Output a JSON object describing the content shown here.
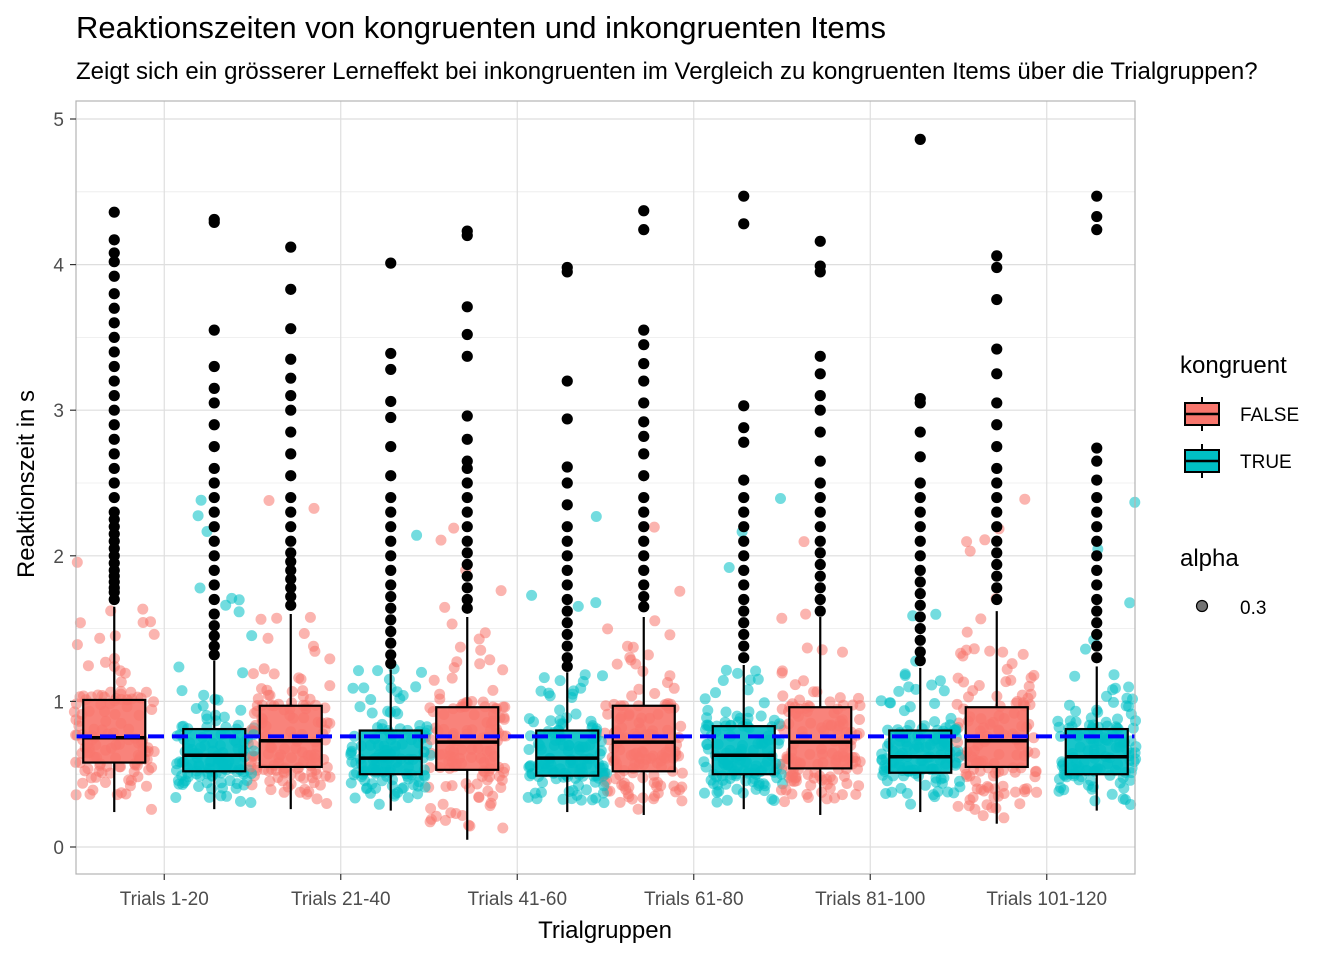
{
  "chart_data": {
    "type": "boxplot-jitter",
    "title": "Reaktionszeiten von kongruenten und inkongruenten Items",
    "subtitle": "Zeigt sich ein grösserer Lerneffekt bei inkongruenten im Vergleich zu kongruenten Items über die Trialgruppen?",
    "xlabel": "Trialgruppen",
    "ylabel": "Reaktionszeit in s",
    "categories": [
      "Trials 1-20",
      "Trials 21-40",
      "Trials 41-60",
      "Trials 61-80",
      "Trials 81-100",
      "Trials 101-120"
    ],
    "y_ticks": [
      "0",
      "1",
      "2",
      "3",
      "4",
      "5"
    ],
    "ylim": [
      -0.18,
      5.1
    ],
    "reference_line": {
      "y": 0.76,
      "color": "#0000ff",
      "style": "dashed"
    },
    "legend": {
      "title": "kongruent",
      "placement": "right",
      "entries": [
        {
          "label": "FALSE",
          "color": "#F8766D"
        },
        {
          "label": "TRUE",
          "color": "#00BFC4"
        }
      ],
      "alpha_title": "alpha",
      "alpha_label": "0.3"
    },
    "series": [
      {
        "name": "FALSE",
        "color": "#F8766D",
        "boxes": [
          {
            "q1": 0.58,
            "median": 0.75,
            "q3": 1.01,
            "lower": 0.24,
            "upper": 1.65,
            "outliers": [
              1.7,
              1.75,
              1.78,
              1.82,
              1.86,
              1.9,
              1.95,
              2.0,
              2.05,
              2.1,
              2.15,
              2.2,
              2.25,
              2.3,
              2.4,
              2.5,
              2.6,
              2.7,
              2.8,
              2.9,
              3.0,
              3.1,
              3.2,
              3.3,
              3.4,
              3.5,
              3.6,
              3.7,
              3.8,
              3.92,
              4.02,
              4.08,
              4.17,
              4.36
            ]
          },
          {
            "q1": 0.55,
            "median": 0.73,
            "q3": 0.97,
            "lower": 0.26,
            "upper": 1.6,
            "outliers": [
              1.66,
              1.72,
              1.78,
              1.84,
              1.9,
              1.96,
              2.02,
              2.1,
              2.2,
              2.3,
              2.4,
              2.55,
              2.7,
              2.85,
              3.0,
              3.1,
              3.22,
              3.35,
              3.56,
              3.83,
              4.12
            ]
          },
          {
            "q1": 0.53,
            "median": 0.72,
            "q3": 0.96,
            "lower": 0.05,
            "upper": 1.58,
            "outliers": [
              1.64,
              1.7,
              1.78,
              1.86,
              1.94,
              2.02,
              2.1,
              2.2,
              2.3,
              2.4,
              2.5,
              2.6,
              2.65,
              2.8,
              2.96,
              3.37,
              3.52,
              3.71,
              4.2,
              4.23
            ]
          },
          {
            "q1": 0.52,
            "median": 0.72,
            "q3": 0.97,
            "lower": 0.22,
            "upper": 1.58,
            "outliers": [
              1.65,
              1.72,
              1.8,
              1.9,
              2.0,
              2.1,
              2.2,
              2.3,
              2.4,
              2.55,
              2.7,
              2.82,
              2.92,
              3.05,
              3.2,
              3.32,
              3.45,
              3.55,
              4.24,
              4.37
            ]
          },
          {
            "q1": 0.54,
            "median": 0.72,
            "q3": 0.96,
            "lower": 0.22,
            "upper": 1.58,
            "outliers": [
              1.62,
              1.7,
              1.78,
              1.86,
              1.94,
              2.02,
              2.1,
              2.2,
              2.3,
              2.4,
              2.5,
              2.65,
              2.85,
              3.0,
              3.1,
              3.25,
              3.37,
              3.95,
              3.99,
              4.16
            ]
          },
          {
            "q1": 0.55,
            "median": 0.73,
            "q3": 0.96,
            "lower": 0.16,
            "upper": 1.62,
            "outliers": [
              1.7,
              1.78,
              1.86,
              1.94,
              2.02,
              2.1,
              2.2,
              2.3,
              2.4,
              2.5,
              2.6,
              2.75,
              2.9,
              3.05,
              3.25,
              3.42,
              3.76,
              3.98,
              4.06
            ]
          }
        ]
      },
      {
        "name": "TRUE",
        "color": "#00BFC4",
        "boxes": [
          {
            "q1": 0.52,
            "median": 0.63,
            "q3": 0.81,
            "lower": 0.26,
            "upper": 1.28,
            "outliers": [
              1.32,
              1.38,
              1.45,
              1.52,
              1.6,
              1.7,
              1.8,
              1.9,
              2.0,
              2.1,
              2.2,
              2.3,
              2.4,
              2.5,
              2.6,
              2.75,
              2.9,
              3.05,
              3.15,
              3.3,
              3.55,
              4.29,
              4.31
            ]
          },
          {
            "q1": 0.5,
            "median": 0.61,
            "q3": 0.8,
            "lower": 0.25,
            "upper": 1.22,
            "outliers": [
              1.26,
              1.32,
              1.4,
              1.48,
              1.56,
              1.64,
              1.72,
              1.8,
              1.9,
              2.0,
              2.1,
              2.2,
              2.3,
              2.4,
              2.55,
              2.75,
              2.95,
              3.06,
              3.28,
              3.39,
              4.01
            ]
          },
          {
            "q1": 0.49,
            "median": 0.61,
            "q3": 0.8,
            "lower": 0.24,
            "upper": 1.2,
            "outliers": [
              1.24,
              1.3,
              1.38,
              1.46,
              1.54,
              1.62,
              1.7,
              1.8,
              1.9,
              2.0,
              2.1,
              2.2,
              2.35,
              2.5,
              2.61,
              2.94,
              3.2,
              3.95,
              3.98
            ]
          },
          {
            "q1": 0.5,
            "median": 0.63,
            "q3": 0.83,
            "lower": 0.26,
            "upper": 1.25,
            "outliers": [
              1.3,
              1.38,
              1.46,
              1.54,
              1.62,
              1.7,
              1.8,
              1.9,
              2.0,
              2.1,
              2.2,
              2.3,
              2.4,
              2.52,
              2.78,
              2.88,
              3.03,
              4.28,
              4.47
            ]
          },
          {
            "q1": 0.51,
            "median": 0.62,
            "q3": 0.8,
            "lower": 0.24,
            "upper": 1.23,
            "outliers": [
              1.28,
              1.34,
              1.42,
              1.5,
              1.58,
              1.66,
              1.74,
              1.82,
              1.9,
              2.0,
              2.1,
              2.2,
              2.3,
              2.4,
              2.5,
              2.68,
              2.85,
              3.05,
              3.08,
              4.86
            ]
          },
          {
            "q1": 0.5,
            "median": 0.62,
            "q3": 0.81,
            "lower": 0.25,
            "upper": 1.24,
            "outliers": [
              1.3,
              1.38,
              1.46,
              1.54,
              1.62,
              1.7,
              1.8,
              1.9,
              2.0,
              2.1,
              2.2,
              2.3,
              2.4,
              2.52,
              2.65,
              2.74,
              4.24,
              4.33,
              4.47
            ]
          }
        ]
      }
    ]
  }
}
